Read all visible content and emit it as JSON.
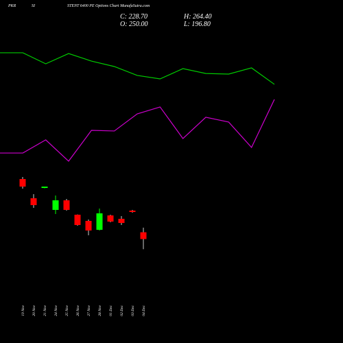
{
  "chart_data": [
    {
      "type": "line",
      "x": [
        0,
        1,
        2,
        3,
        4,
        5,
        6,
        7,
        8,
        9,
        10,
        11,
        12
      ],
      "xlim": [
        0,
        12
      ],
      "ylim": [
        0,
        100
      ],
      "series": [
        {
          "color": "#00cc00",
          "values": [
            83.2,
            83.2,
            75.9,
            82.7,
            77.7,
            74.1,
            68.2,
            65.9,
            72.7,
            69.5,
            69.1,
            73.2,
            62.3
          ]
        },
        {
          "color": "#cc00cc",
          "values": [
            16.8,
            16.8,
            25.5,
            11.4,
            31.8,
            31.4,
            42.7,
            47.3,
            26.4,
            40.5,
            37.3,
            20.5,
            52.3
          ]
        }
      ]
    },
    {
      "type": "candlestick",
      "title": [
        "PKR",
        "SI",
        "STENT 6400 PE Options Chart MunafaSutra.com"
      ],
      "ohlc_labels": [
        "C: 228.70",
        "H: 264.40",
        "O: 250.00",
        "L: 196.80"
      ],
      "categories": [
        "19 Nov",
        "20 Nov",
        "21 Nov",
        "24 Nov",
        "25 Nov",
        "26 Nov",
        "27 Nov",
        "28 Nov",
        "01 Dec",
        "02 Dec",
        "03 Dec",
        "04 Dec"
      ],
      "open": [
        417.1,
        356.8,
        389.1,
        320.2,
        350.3,
        305.1,
        285.7,
        257.7,
        302.9,
        292.2,
        318.0,
        250.0
      ],
      "high": [
        423.5,
        369.7,
        393.4,
        365.4,
        354.6,
        306.0,
        290.0,
        324.5,
        305.1,
        300.8,
        320.2,
        264.4
      ],
      "low": [
        386.9,
        326.6,
        388.0,
        307.2,
        318.0,
        270.6,
        240.5,
        255.5,
        281.4,
        272.8,
        311.5,
        196.8
      ],
      "close": [
        393.4,
        335.2,
        393.4,
        350.3,
        320.2,
        272.8,
        255.5,
        309.4,
        283.5,
        279.2,
        313.7,
        228.7
      ],
      "up_color": "#00ff00",
      "down_color": "#ff0000",
      "ylim": [
        150,
        430
      ]
    }
  ]
}
